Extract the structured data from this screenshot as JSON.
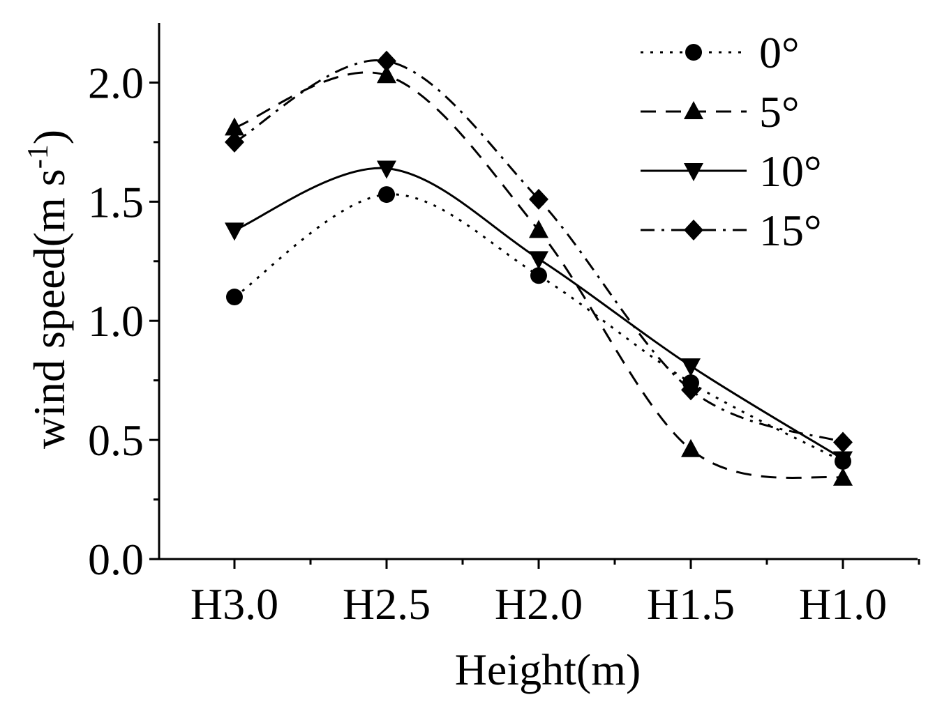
{
  "chart_data": {
    "type": "line",
    "title": "",
    "xlabel": "Height(m)",
    "ylabel_main": "wind speed(m s",
    "ylabel_sup": "-1",
    "ylabel_close": ")",
    "categories": [
      "H3.0",
      "H2.5",
      "H2.0",
      "H1.5",
      "H1.0"
    ],
    "ylim": [
      0,
      2.25
    ],
    "yticks": [
      0.0,
      0.5,
      1.0,
      1.5,
      2.0
    ],
    "ytick_labels": [
      "0.0",
      "0.5",
      "1.0",
      "1.5",
      "2.0"
    ],
    "y_minor_ticks": [
      0.25,
      0.75,
      1.25,
      1.75
    ],
    "legend_position": "top-right",
    "series": [
      {
        "name": "0°",
        "marker": "circle",
        "line_style": "dotted",
        "values": [
          1.1,
          1.53,
          1.19,
          0.74,
          0.41
        ]
      },
      {
        "name": "5°",
        "marker": "triangle-up",
        "line_style": "dashed",
        "values": [
          1.81,
          2.03,
          1.38,
          0.46,
          0.34
        ]
      },
      {
        "name": "10°",
        "marker": "triangle-down",
        "line_style": "solid",
        "values": [
          1.38,
          1.64,
          1.26,
          0.81,
          0.42
        ]
      },
      {
        "name": "15°",
        "marker": "diamond",
        "line_style": "dash-dot",
        "values": [
          1.75,
          2.09,
          1.51,
          0.71,
          0.49
        ]
      }
    ]
  }
}
